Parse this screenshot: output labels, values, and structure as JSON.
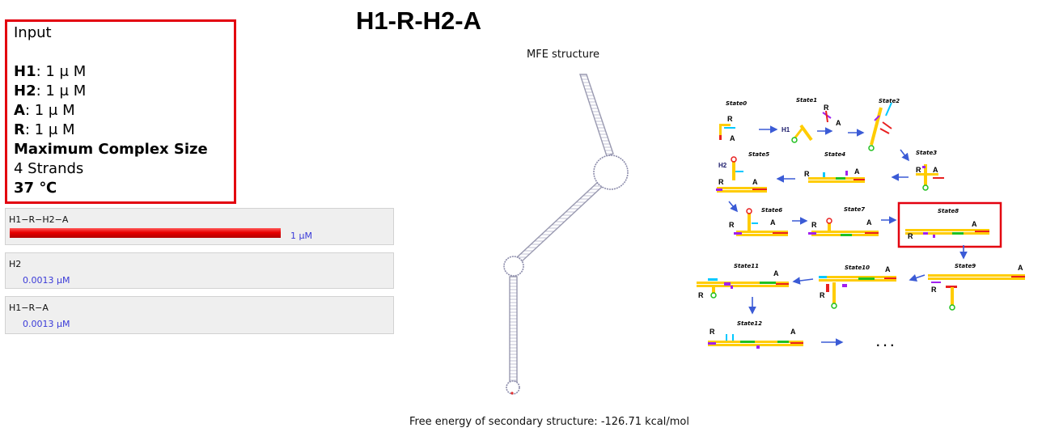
{
  "title": "H1-R-H2-A",
  "input": {
    "heading": "Input",
    "lines": [
      {
        "name": "H1",
        "value": ": 1 μ M"
      },
      {
        "name": "H2",
        "value": ": 1 μ M"
      },
      {
        "name": "A",
        "value": ": 1 μ M"
      },
      {
        "name": "R",
        "value": ": 1 μ M"
      }
    ],
    "max_size_label": "Maximum Complex Size",
    "max_size_value": "4 Strands",
    "temperature": "37 ℃"
  },
  "results": [
    {
      "name": "H1−R−H2−A",
      "concentration": "1 μM",
      "fraction": 1.0
    },
    {
      "name": "H2",
      "concentration": "0.0013 μM"
    },
    {
      "name": "H1−R−A",
      "concentration": "0.0013 μM"
    }
  ],
  "mfe": {
    "label": "MFE structure",
    "free_energy": "Free energy of secondary structure: -126.71 kcal/mol"
  },
  "states": {
    "names": [
      "State0",
      "State1",
      "State2",
      "State3",
      "State4",
      "State5",
      "State6",
      "State7",
      "State8",
      "State9",
      "State10",
      "State11",
      "State12"
    ],
    "strand_labels": {
      "R": "R",
      "A": "A",
      "H1": "H1",
      "H2": "H2"
    },
    "ellipsis": ". . .",
    "highlight": "State8",
    "highlight_color": "#e3000f",
    "arrow_color": "#3b5bd6"
  }
}
